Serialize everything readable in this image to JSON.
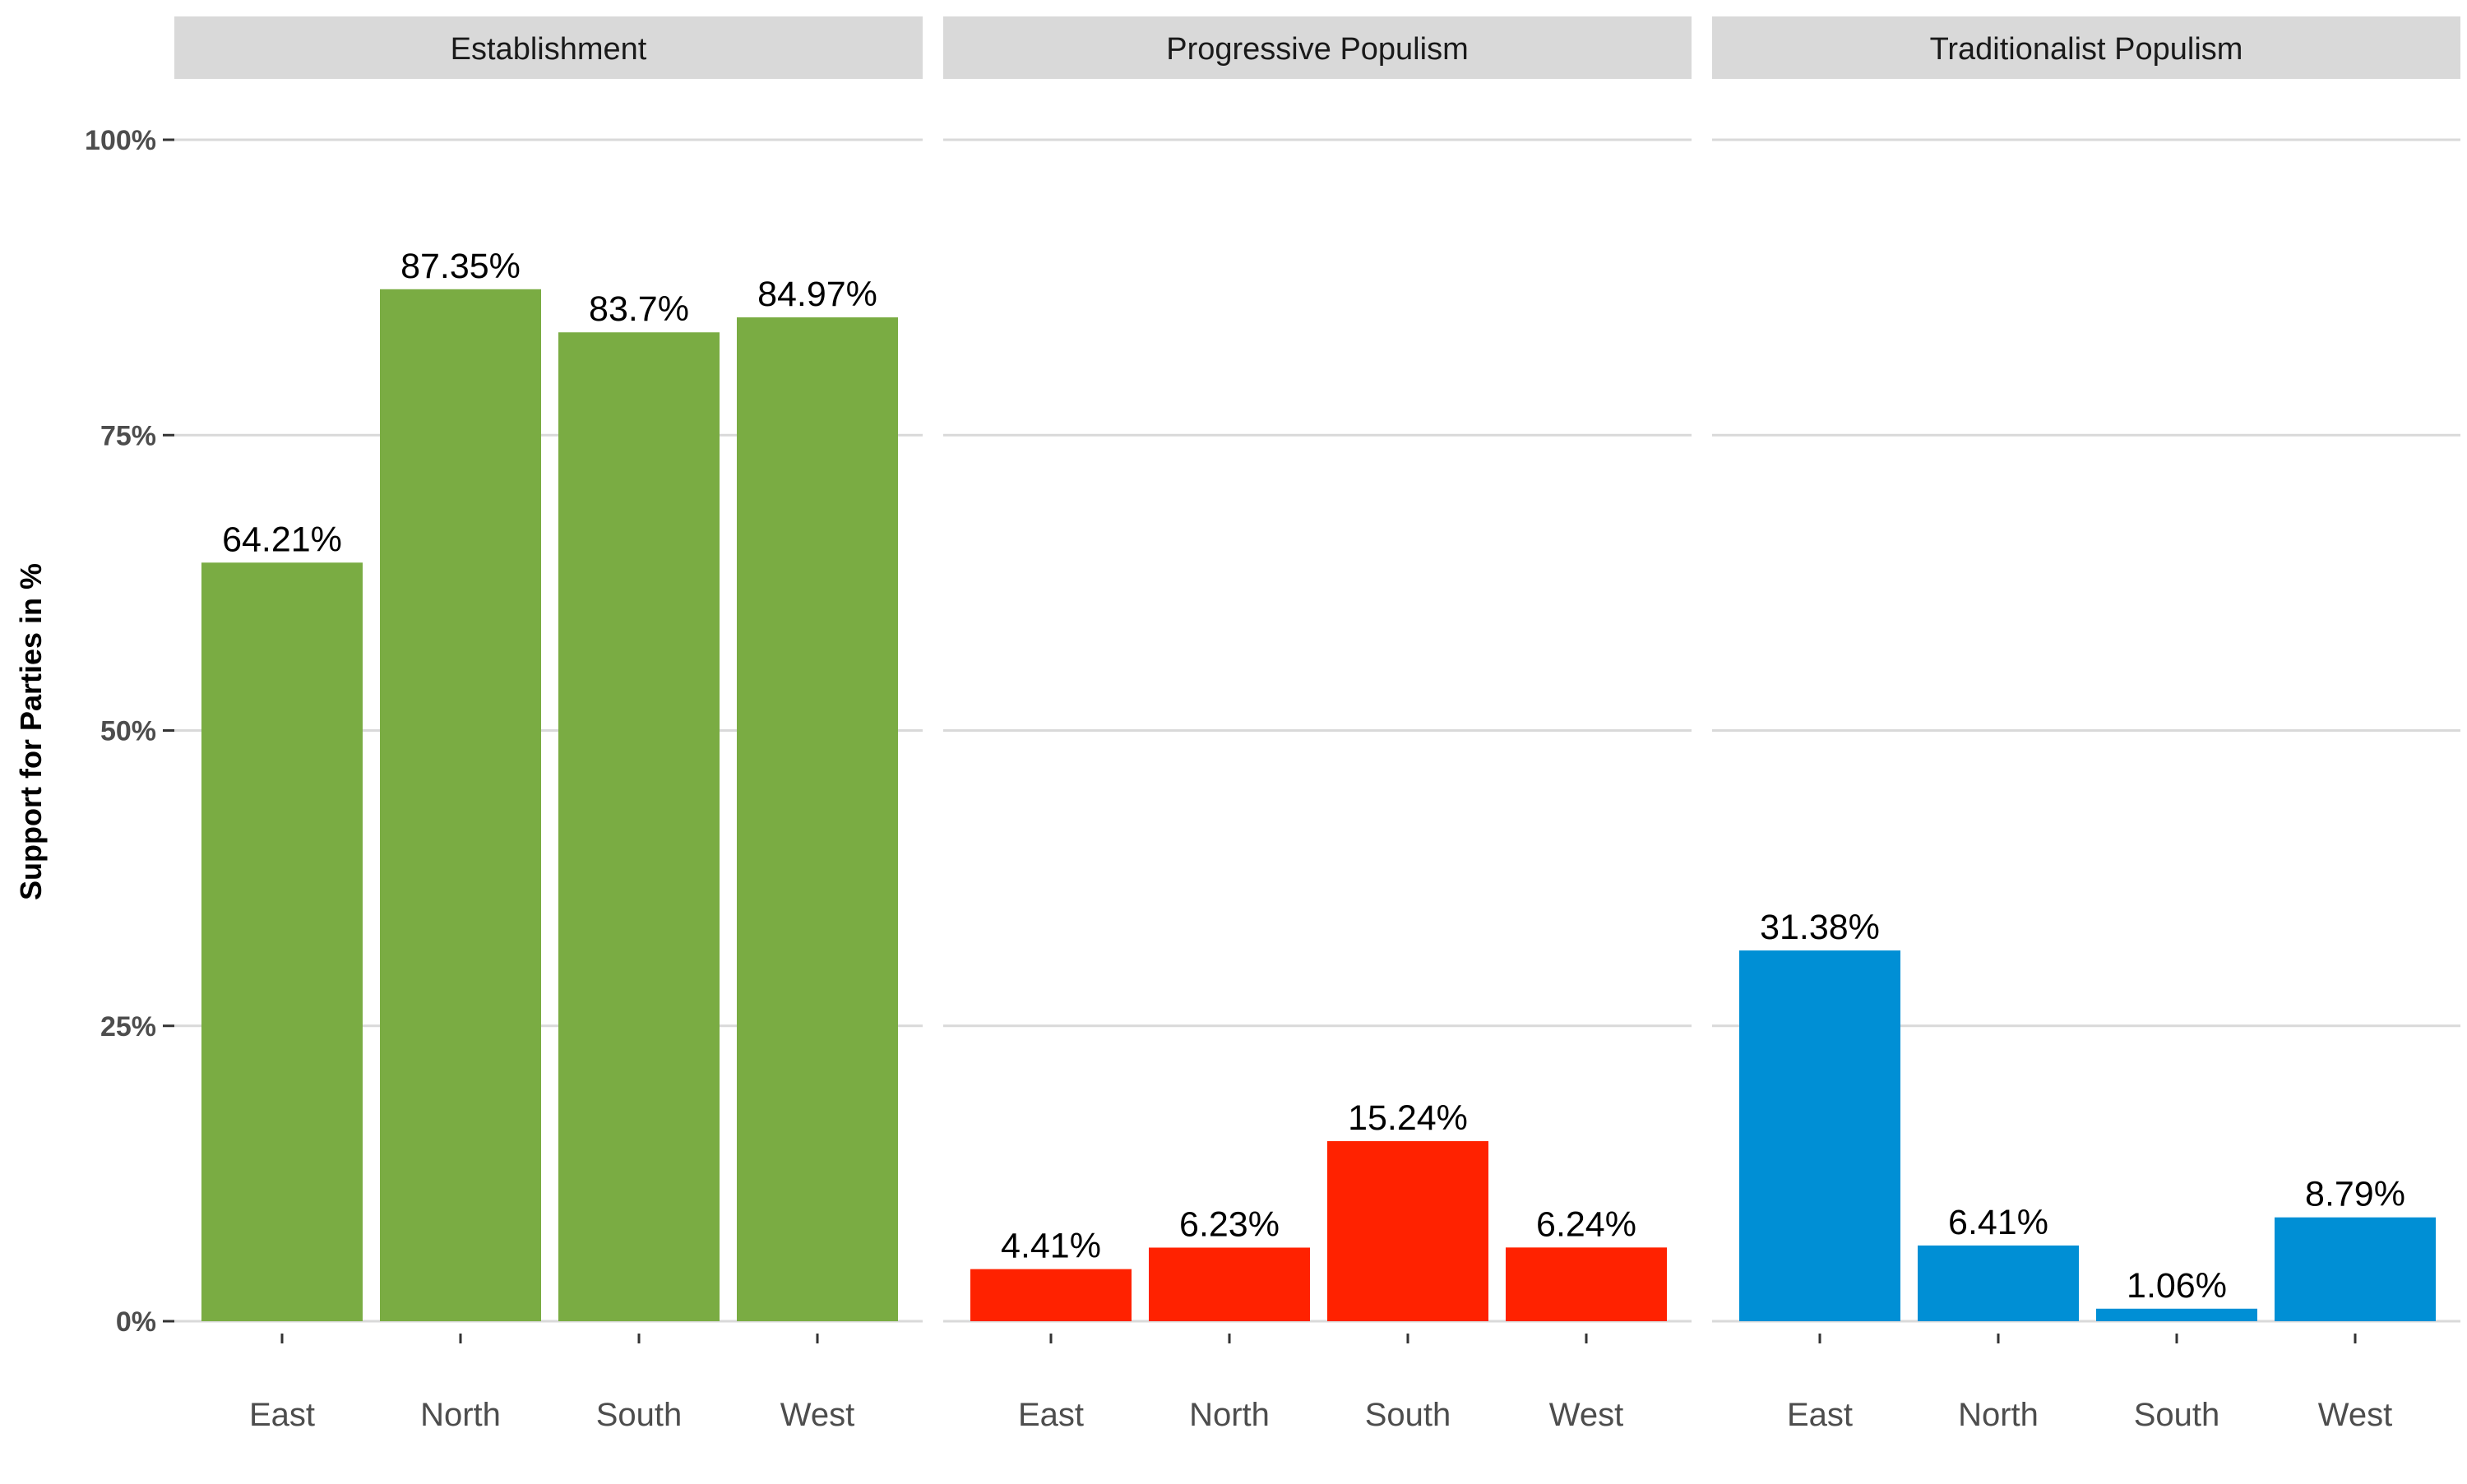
{
  "chart_data": {
    "type": "bar",
    "ylabel": "Support for Parties in %",
    "xlabel": "",
    "ylim": [
      0,
      100
    ],
    "yticks": [
      0,
      25,
      50,
      75,
      100
    ],
    "ytick_labels": [
      "0%",
      "25%",
      "50%",
      "75%",
      "100%"
    ],
    "categories": [
      "East",
      "North",
      "South",
      "West"
    ],
    "grid": true,
    "legend": "none",
    "facets": [
      {
        "name": "Establishment",
        "color": "#7aac43",
        "values": [
          64.21,
          87.35,
          83.7,
          84.97
        ],
        "labels": [
          "64.21%",
          "87.35%",
          "83.7%",
          "84.97%"
        ]
      },
      {
        "name": "Progressive Populism",
        "color": "#ff2200",
        "values": [
          4.41,
          6.23,
          15.24,
          6.24
        ],
        "labels": [
          "4.41%",
          "6.23%",
          "15.24%",
          "6.24%"
        ]
      },
      {
        "name": "Traditionalist Populism",
        "color": "#008fd5",
        "values": [
          31.38,
          6.41,
          1.06,
          8.79
        ],
        "labels": [
          "31.38%",
          "6.41%",
          "1.06%",
          "8.79%"
        ]
      }
    ]
  }
}
